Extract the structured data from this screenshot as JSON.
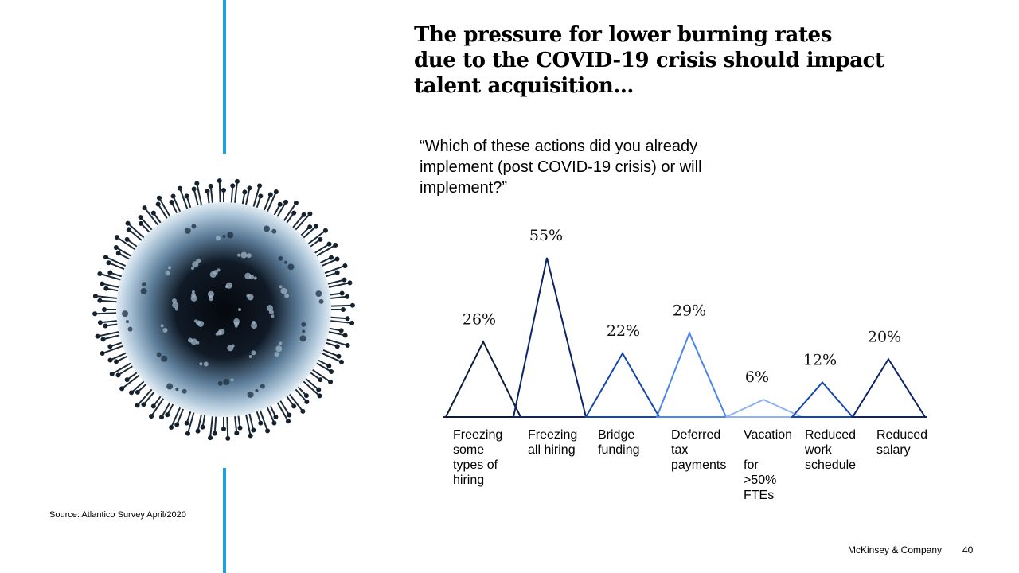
{
  "title": "The pressure for lower burning rates\ndue to the COVID-19 crisis should impact\ntalent acquisition…",
  "question": "“Which of these actions did you already\nimplement (post COVID-19 crisis) or will\nimplement?”",
  "image": {
    "icon": "coronavirus-icon"
  },
  "source": "Source: Atlantico Survey April/2020",
  "footer": {
    "company": "McKinsey & Company",
    "page": "40"
  },
  "colors": {
    "accent_line": "#1aa3e0"
  },
  "chart_data": {
    "type": "area",
    "value_suffix": "%",
    "categories": [
      "Freezing\nsome\ntypes of\nhiring",
      "Freezing\nall hiring",
      "Bridge\nfunding",
      "Deferred\ntax\npayments",
      "Vacation\n\nfor\n>50%\nFTEs",
      "Reduced\nwork\nschedule",
      "Reduced\nsalary"
    ],
    "values": [
      26,
      55,
      22,
      29,
      6,
      12,
      20
    ],
    "value_labels": [
      "26%",
      "55%",
      "22%",
      "29%",
      "6%",
      "12%",
      "20%"
    ],
    "colors": [
      "#0b1c3d",
      "#0c2466",
      "#1446b0",
      "#4d86e8",
      "#8fb4f0",
      "#1446b0",
      "#0c2466"
    ],
    "ylim": [
      0,
      55
    ],
    "grid": false,
    "legend": "none"
  }
}
